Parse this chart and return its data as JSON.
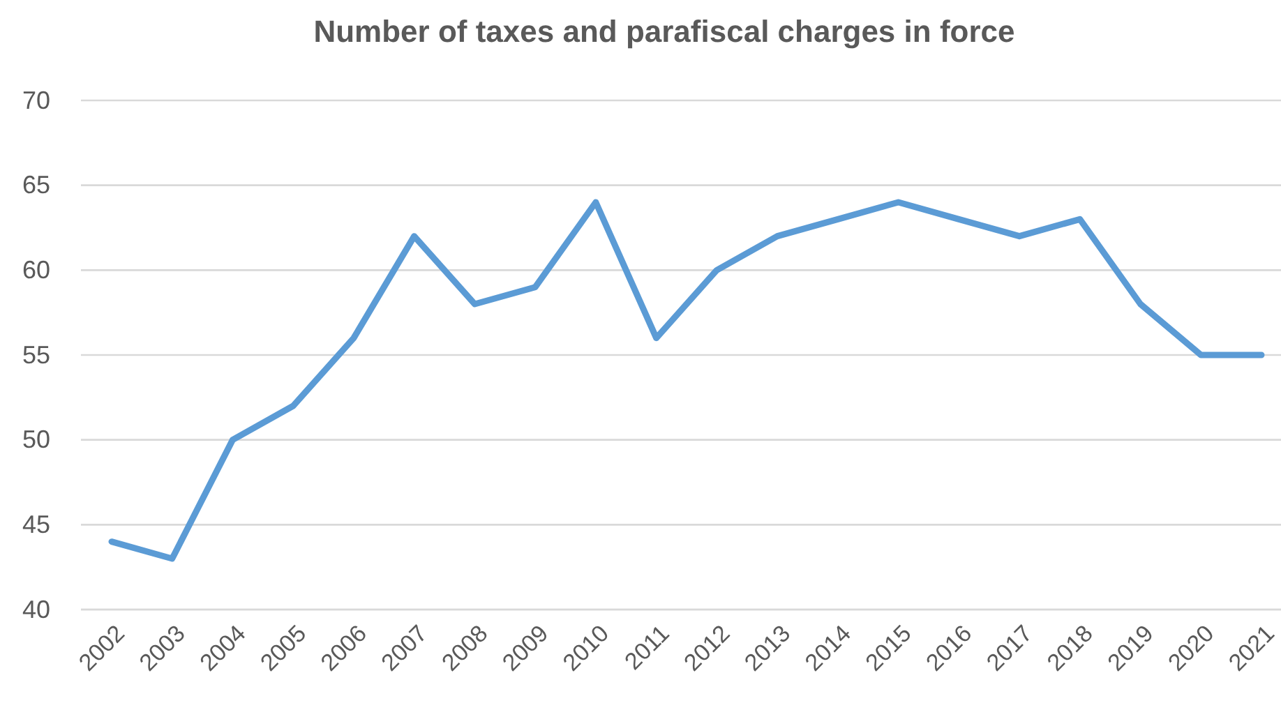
{
  "chart_data": {
    "type": "line",
    "title": "Number of taxes and parafiscal charges in force",
    "categories": [
      "2002",
      "2003",
      "2004",
      "2005",
      "2006",
      "2007",
      "2008",
      "2009",
      "2010",
      "2011",
      "2012",
      "2013",
      "2014",
      "2015",
      "2016",
      "2017",
      "2018",
      "2019",
      "2020",
      "2021"
    ],
    "series": [
      {
        "color": "#5b9bd5",
        "values": [
          44,
          43,
          50,
          52,
          56,
          62,
          58,
          59,
          64,
          56,
          60,
          62,
          63,
          64,
          63,
          62,
          63,
          58,
          55,
          55
        ]
      }
    ],
    "ylim": [
      40,
      70
    ],
    "yticks": [
      40,
      45,
      50,
      55,
      60,
      65,
      70
    ],
    "grid": "y",
    "marker": "none",
    "line_style": "solid"
  }
}
